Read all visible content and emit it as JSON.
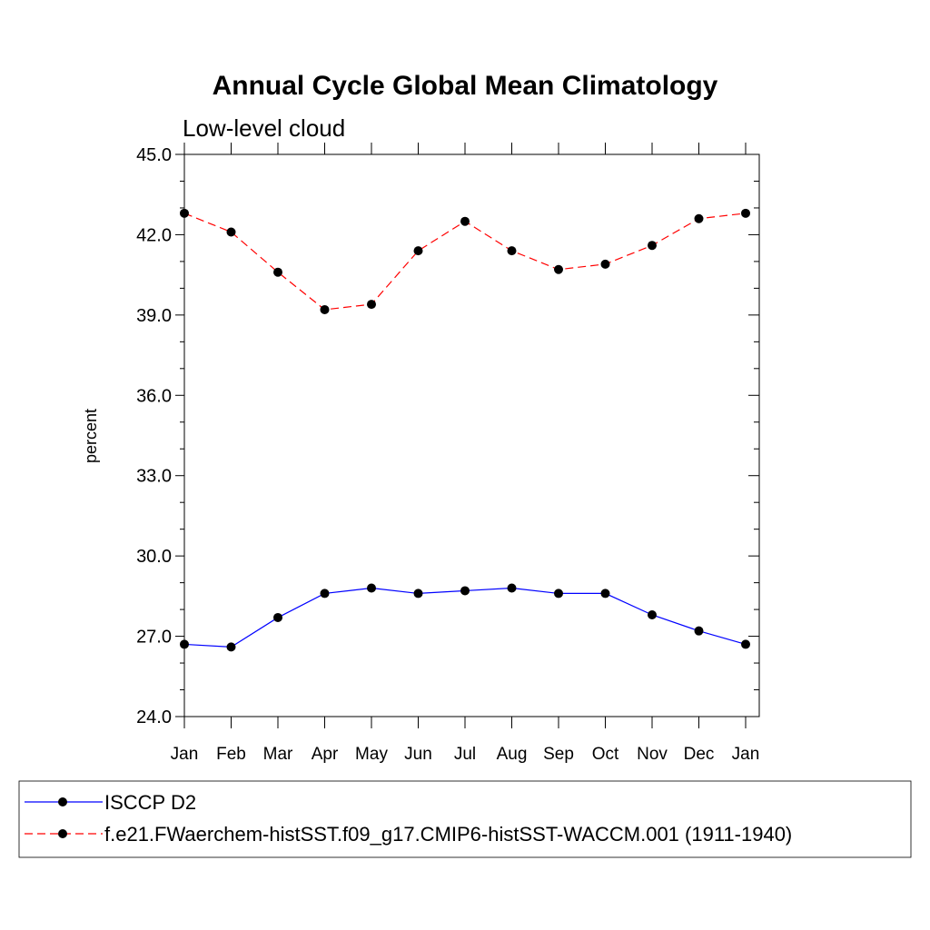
{
  "chart_data": {
    "type": "line",
    "title": "Annual Cycle Global Mean Climatology",
    "subtitle": "Low-level cloud",
    "xlabel": "",
    "ylabel": "percent",
    "categories": [
      "Jan",
      "Feb",
      "Mar",
      "Apr",
      "May",
      "Jun",
      "Jul",
      "Aug",
      "Sep",
      "Oct",
      "Nov",
      "Dec",
      "Jan"
    ],
    "ylim": [
      24.0,
      45.0
    ],
    "yticks": [
      "24.0",
      "27.0",
      "30.0",
      "33.0",
      "36.0",
      "39.0",
      "42.0",
      "45.0"
    ],
    "series": [
      {
        "name": "ISCCP D2",
        "color": "#0000ff",
        "dash": "solid",
        "values": [
          26.7,
          26.6,
          27.7,
          28.6,
          28.8,
          28.6,
          28.7,
          28.8,
          28.6,
          28.6,
          27.8,
          27.2,
          26.7
        ]
      },
      {
        "name": "f.e21.FWaerchem-histSST.f09_g17.CMIP6-histSST-WACCM.001 (1911-1940)",
        "color": "#ff0000",
        "dash": "dashed",
        "values": [
          42.8,
          42.1,
          40.6,
          39.2,
          39.4,
          41.4,
          42.5,
          41.4,
          40.7,
          40.9,
          41.6,
          42.6,
          42.8
        ]
      }
    ],
    "marker": "filled-circle",
    "grid": false,
    "legend_position": "bottom"
  }
}
